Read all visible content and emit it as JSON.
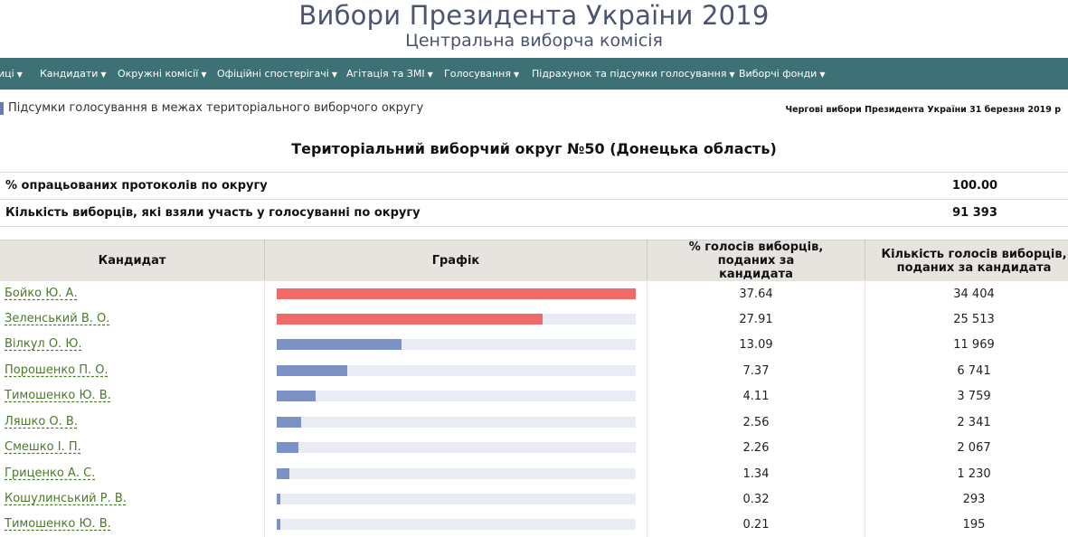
{
  "header": {
    "title": "Вибори Президента України 2019",
    "subtitle": "Центральна виборча комісія"
  },
  "nav": {
    "items": [
      {
        "label": "иці"
      },
      {
        "label": "Кандидати"
      },
      {
        "label": "Окружні комісії"
      },
      {
        "label": "Офіційні спостерігачі"
      },
      {
        "label": "Агітація та ЗМІ"
      },
      {
        "label": "Голосування"
      },
      {
        "label": "Підрахунок та підсумки голосування"
      },
      {
        "label": "Виборчі фонди"
      }
    ]
  },
  "subbar": {
    "title": "Підсумки голосування в межах територіального виборчого округу",
    "election": "Чергові вибори Президента України 31 березня 2019 р"
  },
  "district": {
    "title": "Територіальний виборчий округ №50 (Донецька область)"
  },
  "stats": [
    {
      "label": "% опрацьованих протоколів по округу",
      "value": "100.00"
    },
    {
      "label": "Кількість виборців, які взяли участь у голосуванні по округу",
      "value": "91 393"
    }
  ],
  "table": {
    "headers": {
      "candidate": "Кандидат",
      "chart": "Графік",
      "percent": "% голосів виборців, поданих за кандидата",
      "votes": "Кількість голосів виборців, поданих за кандидата"
    },
    "rows": [
      {
        "name": "Бойко Ю. А.",
        "percent": "37.64",
        "votes": "34 404",
        "share": 37.64,
        "color": "#f06a6a"
      },
      {
        "name": "Зеленський В. О.",
        "percent": "27.91",
        "votes": "25 513",
        "share": 27.91,
        "color": "#f06a6a"
      },
      {
        "name": "Вілкул О. Ю.",
        "percent": "13.09",
        "votes": "11 969",
        "share": 13.09,
        "color": "#7a93c4"
      },
      {
        "name": "Порошенко П. О.",
        "percent": "7.37",
        "votes": "6 741",
        "share": 7.37,
        "color": "#7a93c4"
      },
      {
        "name": "Тимошенко Ю. В.",
        "percent": "4.11",
        "votes": "3 759",
        "share": 4.11,
        "color": "#7a93c4"
      },
      {
        "name": "Ляшко О. В.",
        "percent": "2.56",
        "votes": "2 341",
        "share": 2.56,
        "color": "#7a93c4"
      },
      {
        "name": "Смешко І. П.",
        "percent": "2.26",
        "votes": "2 067",
        "share": 2.26,
        "color": "#7a93c4"
      },
      {
        "name": "Гриценко А. С.",
        "percent": "1.34",
        "votes": "1 230",
        "share": 1.34,
        "color": "#7a93c4"
      },
      {
        "name": "Кошулинський Р. В.",
        "percent": "0.32",
        "votes": "293",
        "share": 0.32,
        "color": "#7a93c4"
      },
      {
        "name": "Тимошенко Ю. В.",
        "percent": "0.21",
        "votes": "195",
        "share": 0.21,
        "color": "#7a93c4"
      }
    ]
  },
  "colors": {
    "nav_bg": "#3e7175",
    "title": "#4b5470",
    "link": "#4b7a2a",
    "bar_top": "#f06a6a",
    "bar_other": "#7a93c4",
    "bar_track": "#e9ecf3"
  }
}
